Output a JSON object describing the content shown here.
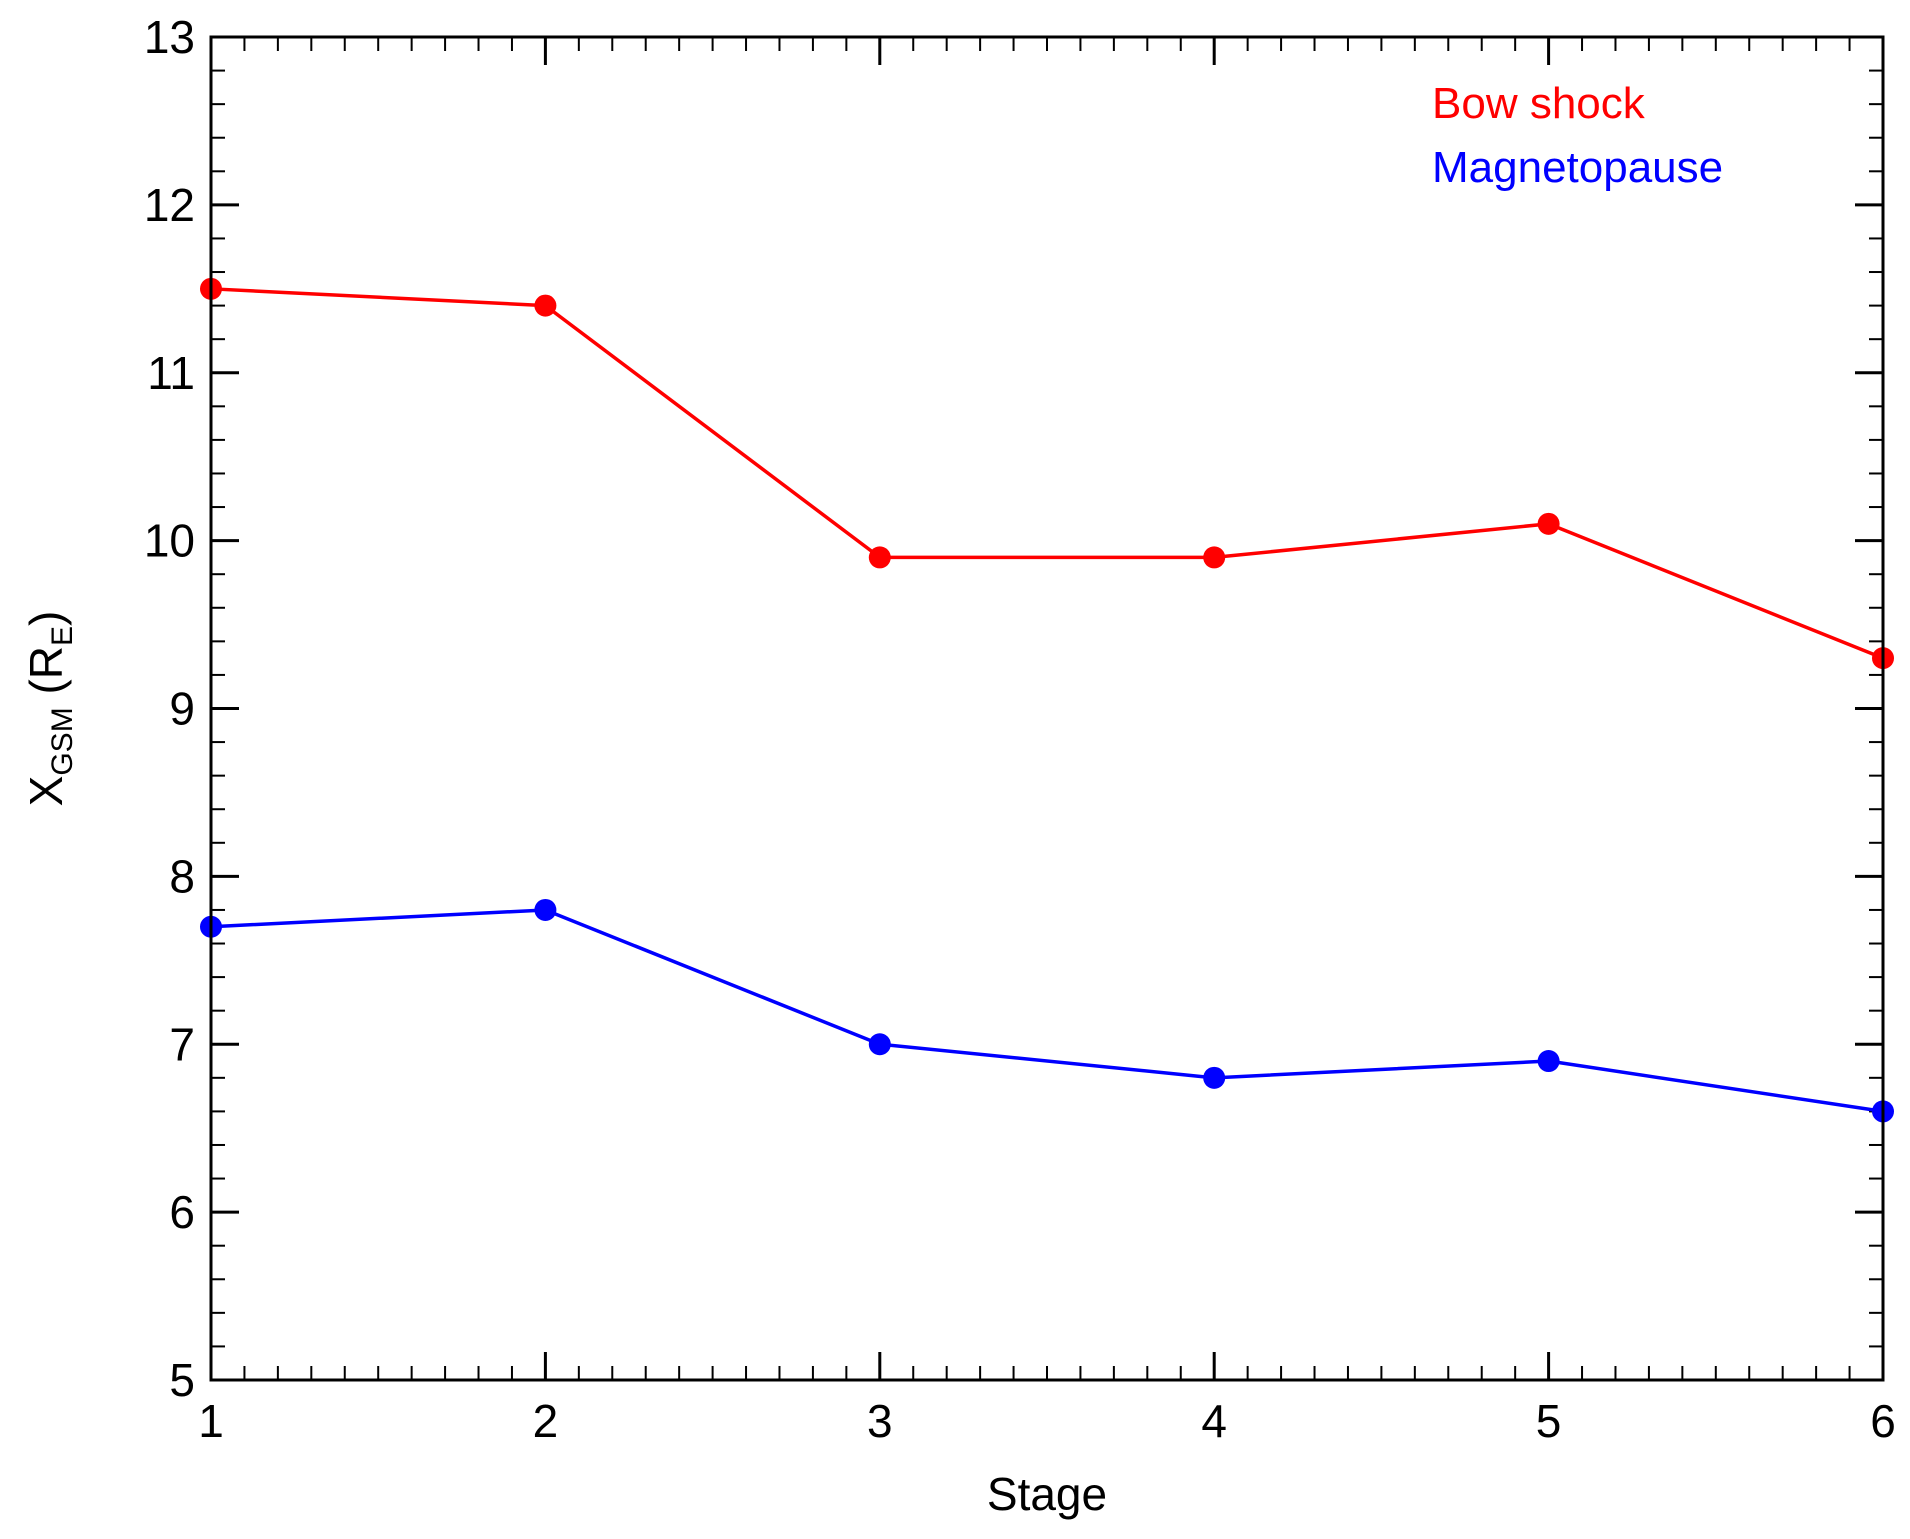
{
  "chart_data": {
    "type": "line",
    "title": "",
    "xlabel": "Stage",
    "ylabel": {
      "main": "X",
      "sub": "GSM",
      "paren_open": " (R",
      "paren_sub": "E",
      "paren_close": ")"
    },
    "xlim": [
      1,
      6
    ],
    "ylim": [
      5,
      13
    ],
    "x_ticks": [
      1,
      2,
      3,
      4,
      5,
      6
    ],
    "y_ticks": [
      5,
      6,
      7,
      8,
      9,
      10,
      11,
      12,
      13
    ],
    "x_minor_per_major": 10,
    "y_minor_per_major": 5,
    "grid": false,
    "legend_position": "top-right",
    "x": [
      1,
      2,
      3,
      4,
      5,
      6
    ],
    "series": [
      {
        "name": "Bow shock",
        "color": "#ff0000",
        "values": [
          11.5,
          11.4,
          9.9,
          9.9,
          10.1,
          9.3
        ]
      },
      {
        "name": "Magnetopause",
        "color": "#0000ff",
        "values": [
          7.7,
          7.8,
          7.0,
          6.8,
          6.9,
          6.6
        ]
      }
    ]
  }
}
